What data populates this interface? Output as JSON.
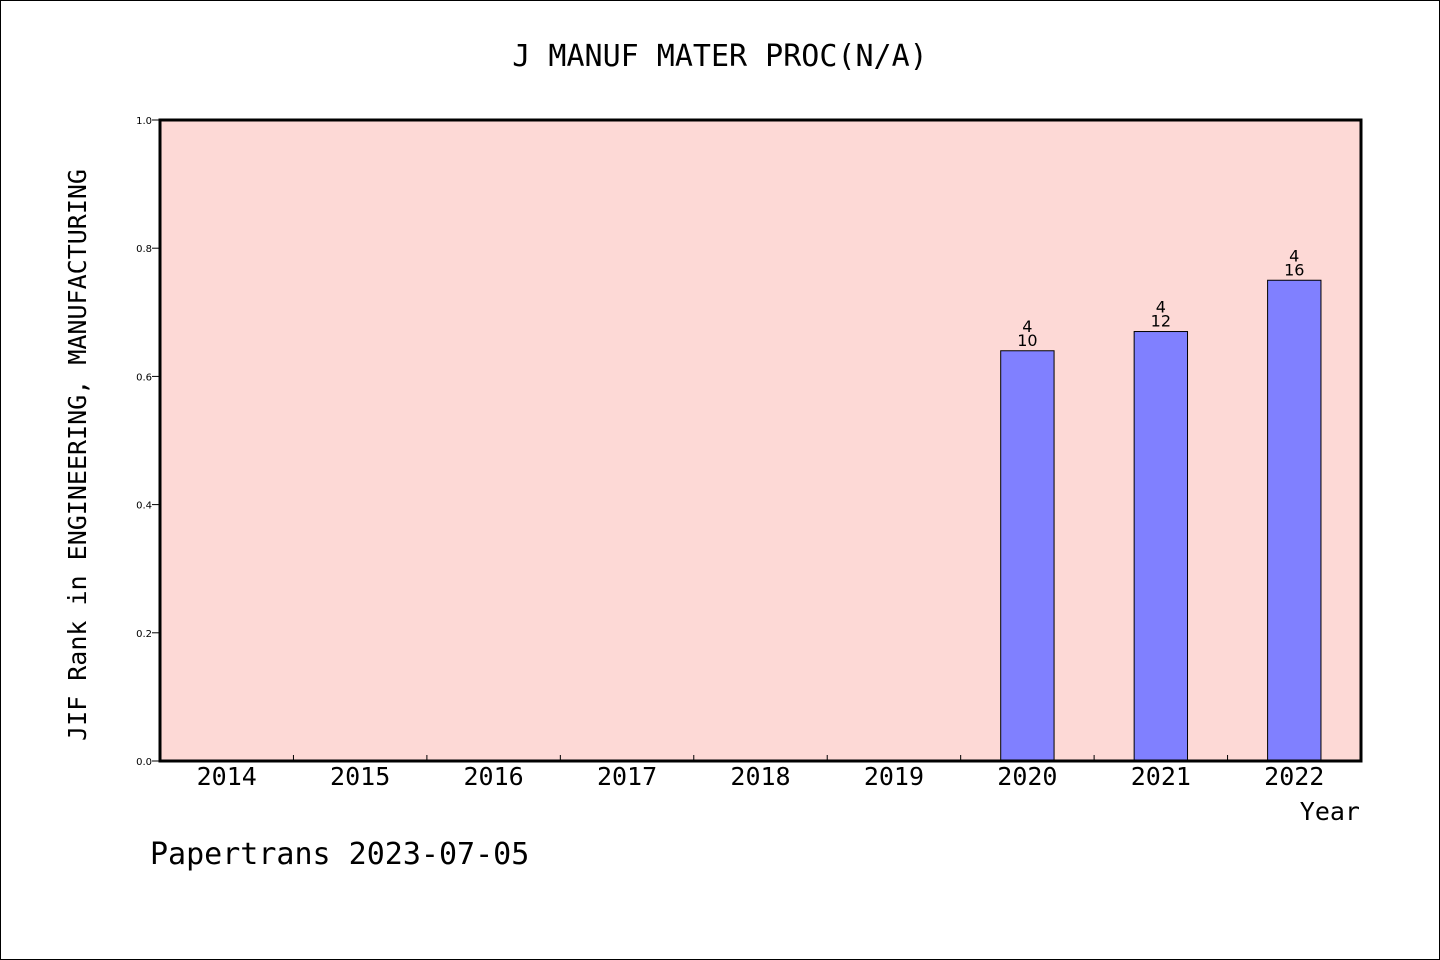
{
  "chart_data": {
    "type": "bar",
    "title": "J MANUF MATER PROC(N/A)",
    "xlabel": "Year",
    "ylabel": "JIF Rank in ENGINEERING, MANUFACTURING",
    "categories": [
      "2014",
      "2015",
      "2016",
      "2017",
      "2018",
      "2019",
      "2020",
      "2021",
      "2022"
    ],
    "values": [
      null,
      null,
      null,
      null,
      null,
      null,
      0.64,
      0.67,
      0.75
    ],
    "bar_labels": [
      null,
      null,
      null,
      null,
      null,
      null,
      {
        "top": "4",
        "bottom": "10"
      },
      {
        "top": "4",
        "bottom": "12"
      },
      {
        "top": "4",
        "bottom": "16"
      }
    ],
    "ylim": [
      0.0,
      1.0
    ],
    "yticks": [
      "0.0",
      "0.2",
      "0.4",
      "0.6",
      "0.8",
      "1.0"
    ],
    "grid": false,
    "colors": {
      "plot_background": "#fdd9d6",
      "bar_fill": "#8080ff",
      "bar_stroke": "#000000"
    }
  },
  "footer": {
    "credit": "Papertrans 2023-07-05"
  }
}
